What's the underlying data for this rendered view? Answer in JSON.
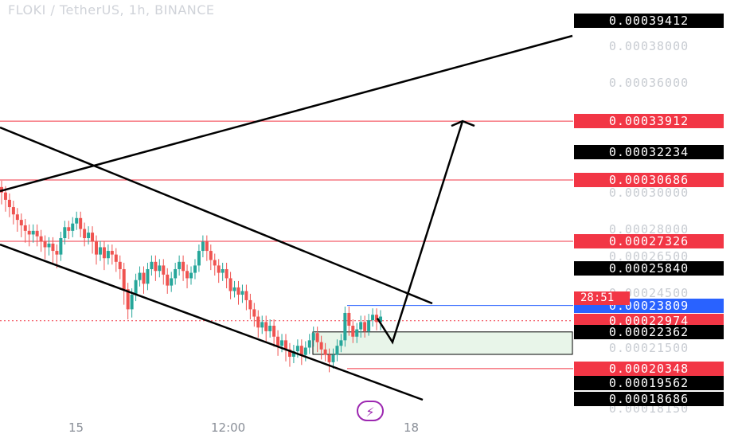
{
  "header": {
    "title": "FLOKI / TetherUS, 1h, BINANCE"
  },
  "price_axis": {
    "ticks": [
      "0.00038000",
      "0.00036000",
      "0.00030000",
      "0.00028000",
      "0.00026500",
      "0.00024500",
      "0.00021500",
      "0.00018150"
    ],
    "labels": [
      {
        "text": "0.00039412",
        "style": "black"
      },
      {
        "text": "0.00033912",
        "style": "red"
      },
      {
        "text": "0.00032234",
        "style": "black"
      },
      {
        "text": "0.00030686",
        "style": "red"
      },
      {
        "text": "0.00027326",
        "style": "red"
      },
      {
        "text": "0.00025840",
        "style": "black"
      },
      {
        "text": "0.00023809",
        "style": "blue"
      },
      {
        "text": "0.00022974",
        "style": "red"
      },
      {
        "text": "0.00022362",
        "style": "black"
      },
      {
        "text": "0.00020348",
        "style": "red"
      },
      {
        "text": "0.00019562",
        "style": "black"
      },
      {
        "text": "0.00018686",
        "style": "black"
      }
    ],
    "countdown": "28:51"
  },
  "time_axis": {
    "labels": [
      "15",
      "12:00",
      "18"
    ]
  },
  "colors": {
    "up": "#26a69a",
    "down": "#ef5350",
    "level_red": "#f23645",
    "level_blue": "#2962ff",
    "zone": "#e8f5e9"
  },
  "chart_data": {
    "type": "candlestick",
    "title": "FLOKI / TetherUS, 1h, BINANCE",
    "ylim": [
      0.000179,
      0.000402
    ],
    "horizontal_levels": [
      0.00033912,
      0.00030686,
      0.00027326,
      0.00023809,
      0.00020348
    ],
    "last_price": 0.00022974,
    "demand_zone": [
      0.0002113,
      0.0002236
    ],
    "projection_path": [
      0.00023109,
      0.000218,
      0.00033912
    ],
    "candles": [
      [
        0.000303,
        0.0003,
        0.000295
      ],
      [
        0.0003,
        0.000296,
        0.000291
      ],
      [
        0.000296,
        0.000292,
        0.000288
      ],
      [
        0.000292,
        0.000288,
        0.000284
      ],
      [
        0.000288,
        0.000285,
        0.00028
      ],
      [
        0.000285,
        0.000282,
        0.000277
      ],
      [
        0.000282,
        0.000279,
        0.000274
      ],
      [
        0.000279,
        0.000277,
        0.000272
      ],
      [
        0.000277,
        0.000279,
        0.000274
      ],
      [
        0.000279,
        0.000276,
        0.000272
      ],
      [
        0.000276,
        0.000273,
        0.000269
      ],
      [
        0.000273,
        0.00027,
        0.000265
      ],
      [
        0.00027,
        0.000272,
        0.000267
      ],
      [
        0.000272,
        0.000268,
        0.000263
      ],
      [
        0.000268,
        0.000266,
        0.00026
      ],
      [
        0.000266,
        0.000275,
        0.000264
      ],
      [
        0.000275,
        0.000281,
        0.000273
      ],
      [
        0.000281,
        0.000279,
        0.000276
      ],
      [
        0.000279,
        0.000283,
        0.000277
      ],
      [
        0.000283,
        0.000286,
        0.000281
      ],
      [
        0.000286,
        0.00028,
        0.000277
      ],
      [
        0.00028,
        0.000275,
        0.000272
      ],
      [
        0.000275,
        0.000278,
        0.000273
      ],
      [
        0.000278,
        0.000273,
        0.000268
      ],
      [
        0.000273,
        0.000266,
        0.000262
      ],
      [
        0.000266,
        0.00027,
        0.000264
      ],
      [
        0.00027,
        0.000264,
        0.000259
      ],
      [
        0.000264,
        0.000268,
        0.000262
      ],
      [
        0.000268,
        0.000266,
        0.000262
      ],
      [
        0.000266,
        0.000262,
        0.000258
      ],
      [
        0.000262,
        0.000258,
        0.000254
      ],
      [
        0.000258,
        0.000247,
        0.00024
      ],
      [
        0.000247,
        0.000236,
        0.000232
      ],
      [
        0.000236,
        0.000244,
        0.000233
      ],
      [
        0.000244,
        0.000252,
        0.000242
      ],
      [
        0.000252,
        0.000256,
        0.00025
      ],
      [
        0.000256,
        0.00025,
        0.000246
      ],
      [
        0.00025,
        0.000258,
        0.000248
      ],
      [
        0.000258,
        0.000262,
        0.000256
      ],
      [
        0.000262,
        0.000257,
        0.000253
      ],
      [
        0.000257,
        0.00026,
        0.000255
      ],
      [
        0.00026,
        0.000255,
        0.000251
      ],
      [
        0.000255,
        0.000249,
        0.000246
      ],
      [
        0.000249,
        0.000253,
        0.000247
      ],
      [
        0.000253,
        0.000258,
        0.000251
      ],
      [
        0.000258,
        0.000262,
        0.000256
      ],
      [
        0.000262,
        0.000257,
        0.000253
      ],
      [
        0.000257,
        0.000253,
        0.000249
      ],
      [
        0.000253,
        0.000256,
        0.000251
      ],
      [
        0.000256,
        0.00026,
        0.000254
      ],
      [
        0.00026,
        0.000268,
        0.000258
      ],
      [
        0.000268,
        0.000273,
        0.000266
      ],
      [
        0.000273,
        0.000268,
        0.000264
      ],
      [
        0.000268,
        0.000263,
        0.000259
      ],
      [
        0.000263,
        0.00026,
        0.000256
      ],
      [
        0.00026,
        0.000256,
        0.000252
      ],
      [
        0.000256,
        0.000258,
        0.000253
      ],
      [
        0.000258,
        0.000253,
        0.000249
      ],
      [
        0.000253,
        0.000246,
        0.000243
      ],
      [
        0.000246,
        0.000248,
        0.000244
      ],
      [
        0.000248,
        0.000244,
        0.00024
      ],
      [
        0.000244,
        0.000246,
        0.000241
      ],
      [
        0.000246,
        0.000241,
        0.000237
      ],
      [
        0.000241,
        0.000236,
        0.000232
      ],
      [
        0.000236,
        0.000232,
        0.000228
      ],
      [
        0.000232,
        0.000226,
        0.000222
      ],
      [
        0.000226,
        0.000229,
        0.000224
      ],
      [
        0.000229,
        0.000224,
        0.00022
      ],
      [
        0.000224,
        0.000227,
        0.000222
      ],
      [
        0.000227,
        0.000221,
        0.000217
      ],
      [
        0.000221,
        0.000216,
        0.000212
      ],
      [
        0.000216,
        0.000219,
        0.000214
      ],
      [
        0.000219,
        0.000214,
        0.000209
      ],
      [
        0.000214,
        0.00021,
        0.000206
      ],
      [
        0.00021,
        0.000213,
        0.000208
      ],
      [
        0.000213,
        0.000216,
        0.000211
      ],
      [
        0.000216,
        0.000211,
        0.000207
      ],
      [
        0.000211,
        0.000215,
        0.000209
      ],
      [
        0.000215,
        0.000219,
        0.000213
      ],
      [
        0.000219,
        0.000223,
        0.000217
      ],
      [
        0.000223,
        0.000218,
        0.000214
      ],
      [
        0.000218,
        0.000214,
        0.00021
      ],
      [
        0.000214,
        0.000211,
        0.000209
      ],
      [
        0.000211,
        0.000207,
        0.000203
      ],
      [
        0.000207,
        0.000211,
        0.000205
      ],
      [
        0.000211,
        0.000216,
        0.000209
      ],
      [
        0.000216,
        0.000219,
        0.000214
      ],
      [
        0.000219,
        0.000234,
        0.000217
      ],
      [
        0.000234,
        0.000227,
        0.000223
      ],
      [
        0.000227,
        0.000221,
        0.000219
      ],
      [
        0.000221,
        0.000225,
        0.000219
      ],
      [
        0.000225,
        0.000229,
        0.000222
      ],
      [
        0.000229,
        0.000224,
        0.000222
      ],
      [
        0.000224,
        0.00023,
        0.000223
      ],
      [
        0.00023,
        0.000233,
        0.000228
      ],
      [
        0.000233,
        0.000229,
        0.000226
      ],
      [
        0.000229,
        0.000232,
        0.000226
      ]
    ]
  }
}
